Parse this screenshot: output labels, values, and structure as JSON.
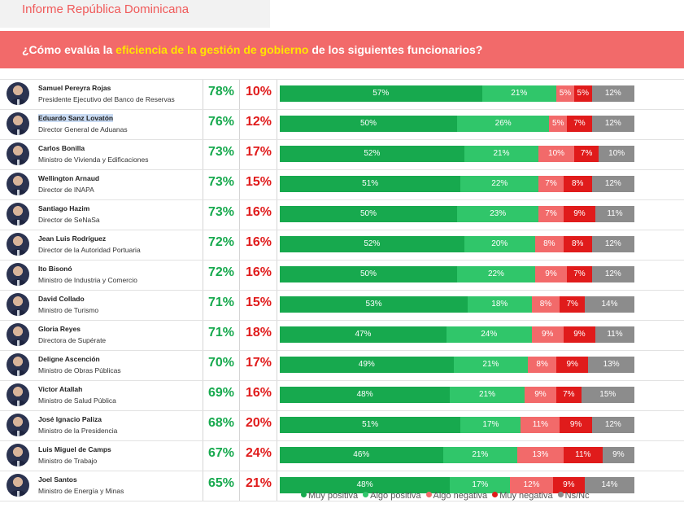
{
  "header": {
    "report_title": "Informe República Dominicana",
    "question_pre": "¿Cómo evalúa la ",
    "question_highlight": "eficiencia de la gestión de gobierno",
    "question_post": " de los siguientes funcionarios?"
  },
  "colors": {
    "muy_positiva": "#17a94e",
    "algo_positiva": "#30c66a",
    "algo_negativa": "#f26a6a",
    "muy_negativa": "#e01b1b",
    "ns_nc": "#8c8c8c"
  },
  "chart_data": {
    "type": "bar",
    "stacked": true,
    "orientation": "horizontal",
    "title": "¿Cómo evalúa la eficiencia de la gestión de gobierno de los siguientes funcionarios?",
    "legend_position": "bottom",
    "categories": [
      "Samuel Pereyra Rojas",
      "Eduardo Sanz Lovatón",
      "Carlos Bonilla",
      "Wellington Arnaud",
      "Santiago Hazim",
      "Jean Luis Rodríguez",
      "Ito Bisonó",
      "David Collado",
      "Gloria Reyes",
      "Deligne Ascención",
      "Victor Atallah",
      "José Ignacio Paliza",
      "Luis Miguel de Camps",
      "Joel Santos"
    ],
    "roles": [
      "Presidente Ejecutivo del Banco de Reservas",
      "Director General de Aduanas",
      "Ministro de Vivienda y Edificaciones",
      "Director de INAPA",
      "Director de SeNaSa",
      "Director de la Autoridad Portuaria",
      "Ministro de Industria y Comercio",
      "Ministro de Turismo",
      "Directora de Supérate",
      "Ministro de Obras Públicas",
      "Ministro de Salud Pública",
      "Ministro de la Presidencia",
      "Ministro de Trabajo",
      "Ministro de Energía y Minas"
    ],
    "positive_totals": [
      "78%",
      "76%",
      "73%",
      "73%",
      "73%",
      "72%",
      "72%",
      "71%",
      "71%",
      "70%",
      "69%",
      "68%",
      "67%",
      "65%"
    ],
    "negative_totals": [
      "10%",
      "12%",
      "17%",
      "15%",
      "16%",
      "16%",
      "16%",
      "15%",
      "18%",
      "17%",
      "16%",
      "20%",
      "24%",
      "21%"
    ],
    "series": [
      {
        "name": "Muy positiva",
        "values": [
          57,
          50,
          52,
          51,
          50,
          52,
          50,
          53,
          47,
          49,
          48,
          51,
          46,
          48
        ]
      },
      {
        "name": "Algo positiva",
        "values": [
          21,
          26,
          21,
          22,
          23,
          20,
          22,
          18,
          24,
          21,
          21,
          17,
          21,
          17
        ]
      },
      {
        "name": "Algo negativa",
        "values": [
          5,
          5,
          10,
          7,
          7,
          8,
          9,
          8,
          9,
          8,
          9,
          11,
          13,
          12
        ]
      },
      {
        "name": "Muy negativa",
        "values": [
          5,
          7,
          7,
          8,
          9,
          8,
          7,
          7,
          9,
          9,
          7,
          9,
          11,
          9
        ]
      },
      {
        "name": "Ns/Nc",
        "values": [
          12,
          12,
          10,
          12,
          11,
          12,
          12,
          14,
          11,
          13,
          15,
          12,
          9,
          14
        ]
      }
    ],
    "value_suffix": "%"
  }
}
